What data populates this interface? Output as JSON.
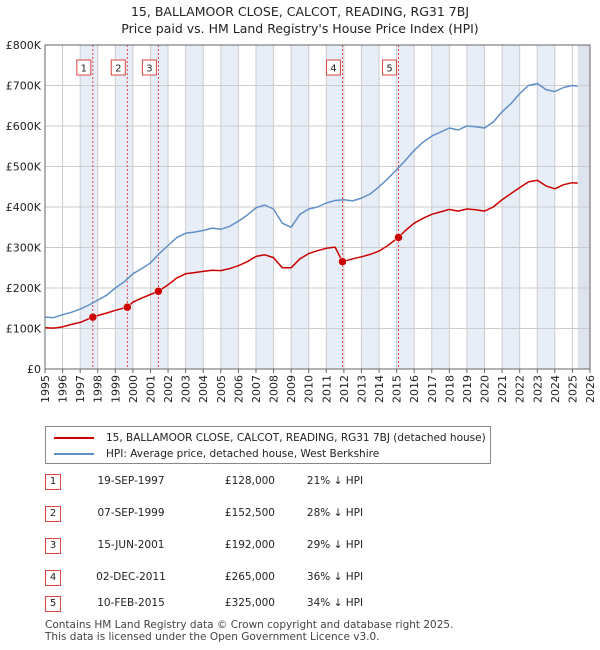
{
  "title_line1": "15, BALLAMOOR CLOSE, CALCOT, READING, RG31 7BJ",
  "title_line2": "Price paid vs. HM Land Registry's House Price Index (HPI)",
  "legend": {
    "red_label": "15, BALLAMOOR CLOSE, CALCOT, READING, RG31 7BJ (detached house)",
    "blue_label": "HPI: Average price, detached house, West Berkshire"
  },
  "colors": {
    "red": "#cc0000",
    "blue": "#6090c8",
    "grid": "#cccccc",
    "band": "#e8eef8"
  },
  "transactions": [
    {
      "num": "1",
      "date": "19-SEP-1997",
      "price": "£128,000",
      "hpi": "21% ↓ HPI"
    },
    {
      "num": "2",
      "date": "07-SEP-1999",
      "price": "£152,500",
      "hpi": "28% ↓ HPI"
    },
    {
      "num": "3",
      "date": "15-JUN-2001",
      "price": "£192,000",
      "hpi": "29% ↓ HPI"
    },
    {
      "num": "4",
      "date": "02-DEC-2011",
      "price": "£265,000",
      "hpi": "36% ↓ HPI"
    },
    {
      "num": "5",
      "date": "10-FEB-2015",
      "price": "£325,000",
      "hpi": "34% ↓ HPI"
    }
  ],
  "footer_line1": "Contains HM Land Registry data © Crown copyright and database right 2025.",
  "footer_line2": "This data is licensed under the Open Government Licence v3.0.",
  "chart_data": {
    "type": "line",
    "title": "15, BALLAMOOR CLOSE, CALCOT, READING, RG31 7BJ — Price paid vs. HM Land Registry's House Price Index (HPI)",
    "xlabel": "",
    "ylabel": "",
    "xlim": [
      1995,
      2026
    ],
    "ylim": [
      0,
      800000
    ],
    "x_ticks": [
      "1995",
      "1996",
      "1997",
      "1998",
      "1999",
      "2000",
      "2001",
      "2002",
      "2003",
      "2004",
      "2005",
      "2006",
      "2007",
      "2008",
      "2009",
      "2010",
      "2011",
      "2012",
      "2013",
      "2014",
      "2015",
      "2016",
      "2017",
      "2018",
      "2019",
      "2020",
      "2021",
      "2022",
      "2023",
      "2024",
      "2025",
      "2026"
    ],
    "y_ticks": [
      {
        "value": 0,
        "label": "£0"
      },
      {
        "value": 100000,
        "label": "£100K"
      },
      {
        "value": 200000,
        "label": "£200K"
      },
      {
        "value": 300000,
        "label": "£300K"
      },
      {
        "value": 400000,
        "label": "£400K"
      },
      {
        "value": 500000,
        "label": "£500K"
      },
      {
        "value": 600000,
        "label": "£600K"
      },
      {
        "value": 700000,
        "label": "£700K"
      },
      {
        "value": 800000,
        "label": "£800K"
      }
    ],
    "shaded_years": [
      1997,
      1999,
      2001,
      2003,
      2005,
      2007,
      2009,
      2011,
      2013,
      2015,
      2017,
      2019,
      2021,
      2023
    ],
    "future_start": 2025.3,
    "series": [
      {
        "name": "HPI: Average price, detached house, West Berkshire",
        "color": "#6090c8",
        "x": [
          1995,
          1995.5,
          1996,
          1996.5,
          1997,
          1997.5,
          1998,
          1998.5,
          1999,
          1999.5,
          2000,
          2000.5,
          2001,
          2001.5,
          2002,
          2002.5,
          2003,
          2003.5,
          2004,
          2004.5,
          2005,
          2005.5,
          2006,
          2006.5,
          2007,
          2007.5,
          2008,
          2008.5,
          2009,
          2009.5,
          2010,
          2010.5,
          2011,
          2011.5,
          2012,
          2012.5,
          2013,
          2013.5,
          2014,
          2014.5,
          2015,
          2015.5,
          2016,
          2016.5,
          2017,
          2017.5,
          2018,
          2018.5,
          2019,
          2019.5,
          2020,
          2020.5,
          2021,
          2021.5,
          2022,
          2022.5,
          2023,
          2023.5,
          2024,
          2024.5,
          2025,
          2025.3
        ],
        "values": [
          128000,
          127000,
          134000,
          140000,
          148000,
          158000,
          170000,
          182000,
          200000,
          215000,
          235000,
          248000,
          262000,
          285000,
          305000,
          325000,
          335000,
          338000,
          342000,
          348000,
          345000,
          352000,
          365000,
          380000,
          398000,
          405000,
          395000,
          360000,
          350000,
          382000,
          395000,
          400000,
          410000,
          416000,
          418000,
          415000,
          422000,
          432000,
          450000,
          470000,
          492000,
          515000,
          540000,
          560000,
          575000,
          585000,
          595000,
          590000,
          600000,
          598000,
          595000,
          610000,
          635000,
          655000,
          680000,
          700000,
          705000,
          690000,
          685000,
          695000,
          700000,
          698000
        ]
      },
      {
        "name": "15, BALLAMOOR CLOSE, CALCOT, READING, RG31 7BJ (detached house)",
        "color": "#cc0000",
        "x": [
          1995,
          1995.5,
          1996,
          1996.5,
          1997,
          1997.72,
          1998,
          1998.5,
          1999,
          1999.68,
          2000,
          2000.5,
          2001,
          2001.45,
          2002,
          2002.5,
          2003,
          2003.5,
          2004,
          2004.5,
          2005,
          2005.5,
          2006,
          2006.5,
          2007,
          2007.5,
          2008,
          2008.5,
          2009,
          2009.5,
          2010,
          2010.5,
          2011,
          2011.5,
          2011.92,
          2012.5,
          2013,
          2013.5,
          2014,
          2014.5,
          2015.11,
          2015.5,
          2016,
          2016.5,
          2017,
          2017.5,
          2018,
          2018.5,
          2019,
          2019.5,
          2020,
          2020.5,
          2021,
          2021.5,
          2022,
          2022.5,
          2023,
          2023.5,
          2024,
          2024.5,
          2025,
          2025.3
        ],
        "values": [
          102000,
          101000,
          104000,
          110000,
          115000,
          128000,
          132000,
          138000,
          145000,
          152500,
          165000,
          175000,
          184000,
          192000,
          208000,
          225000,
          235000,
          238000,
          241000,
          244000,
          243000,
          248000,
          255000,
          265000,
          278000,
          282000,
          275000,
          250000,
          250000,
          272000,
          285000,
          292000,
          298000,
          301000,
          265000,
          272000,
          277000,
          283000,
          291000,
          305000,
          325000,
          342000,
          360000,
          372000,
          382000,
          388000,
          394000,
          390000,
          395000,
          393000,
          390000,
          400000,
          418000,
          433000,
          448000,
          462000,
          466000,
          452000,
          445000,
          455000,
          460000,
          459000
        ]
      }
    ],
    "markers": [
      {
        "label": "1",
        "x": 1997.72,
        "value": 128000
      },
      {
        "label": "2",
        "x": 1999.68,
        "value": 152500
      },
      {
        "label": "3",
        "x": 2001.45,
        "value": 192000
      },
      {
        "label": "4",
        "x": 2011.92,
        "value": 265000
      },
      {
        "label": "5",
        "x": 2015.11,
        "value": 325000
      }
    ]
  }
}
